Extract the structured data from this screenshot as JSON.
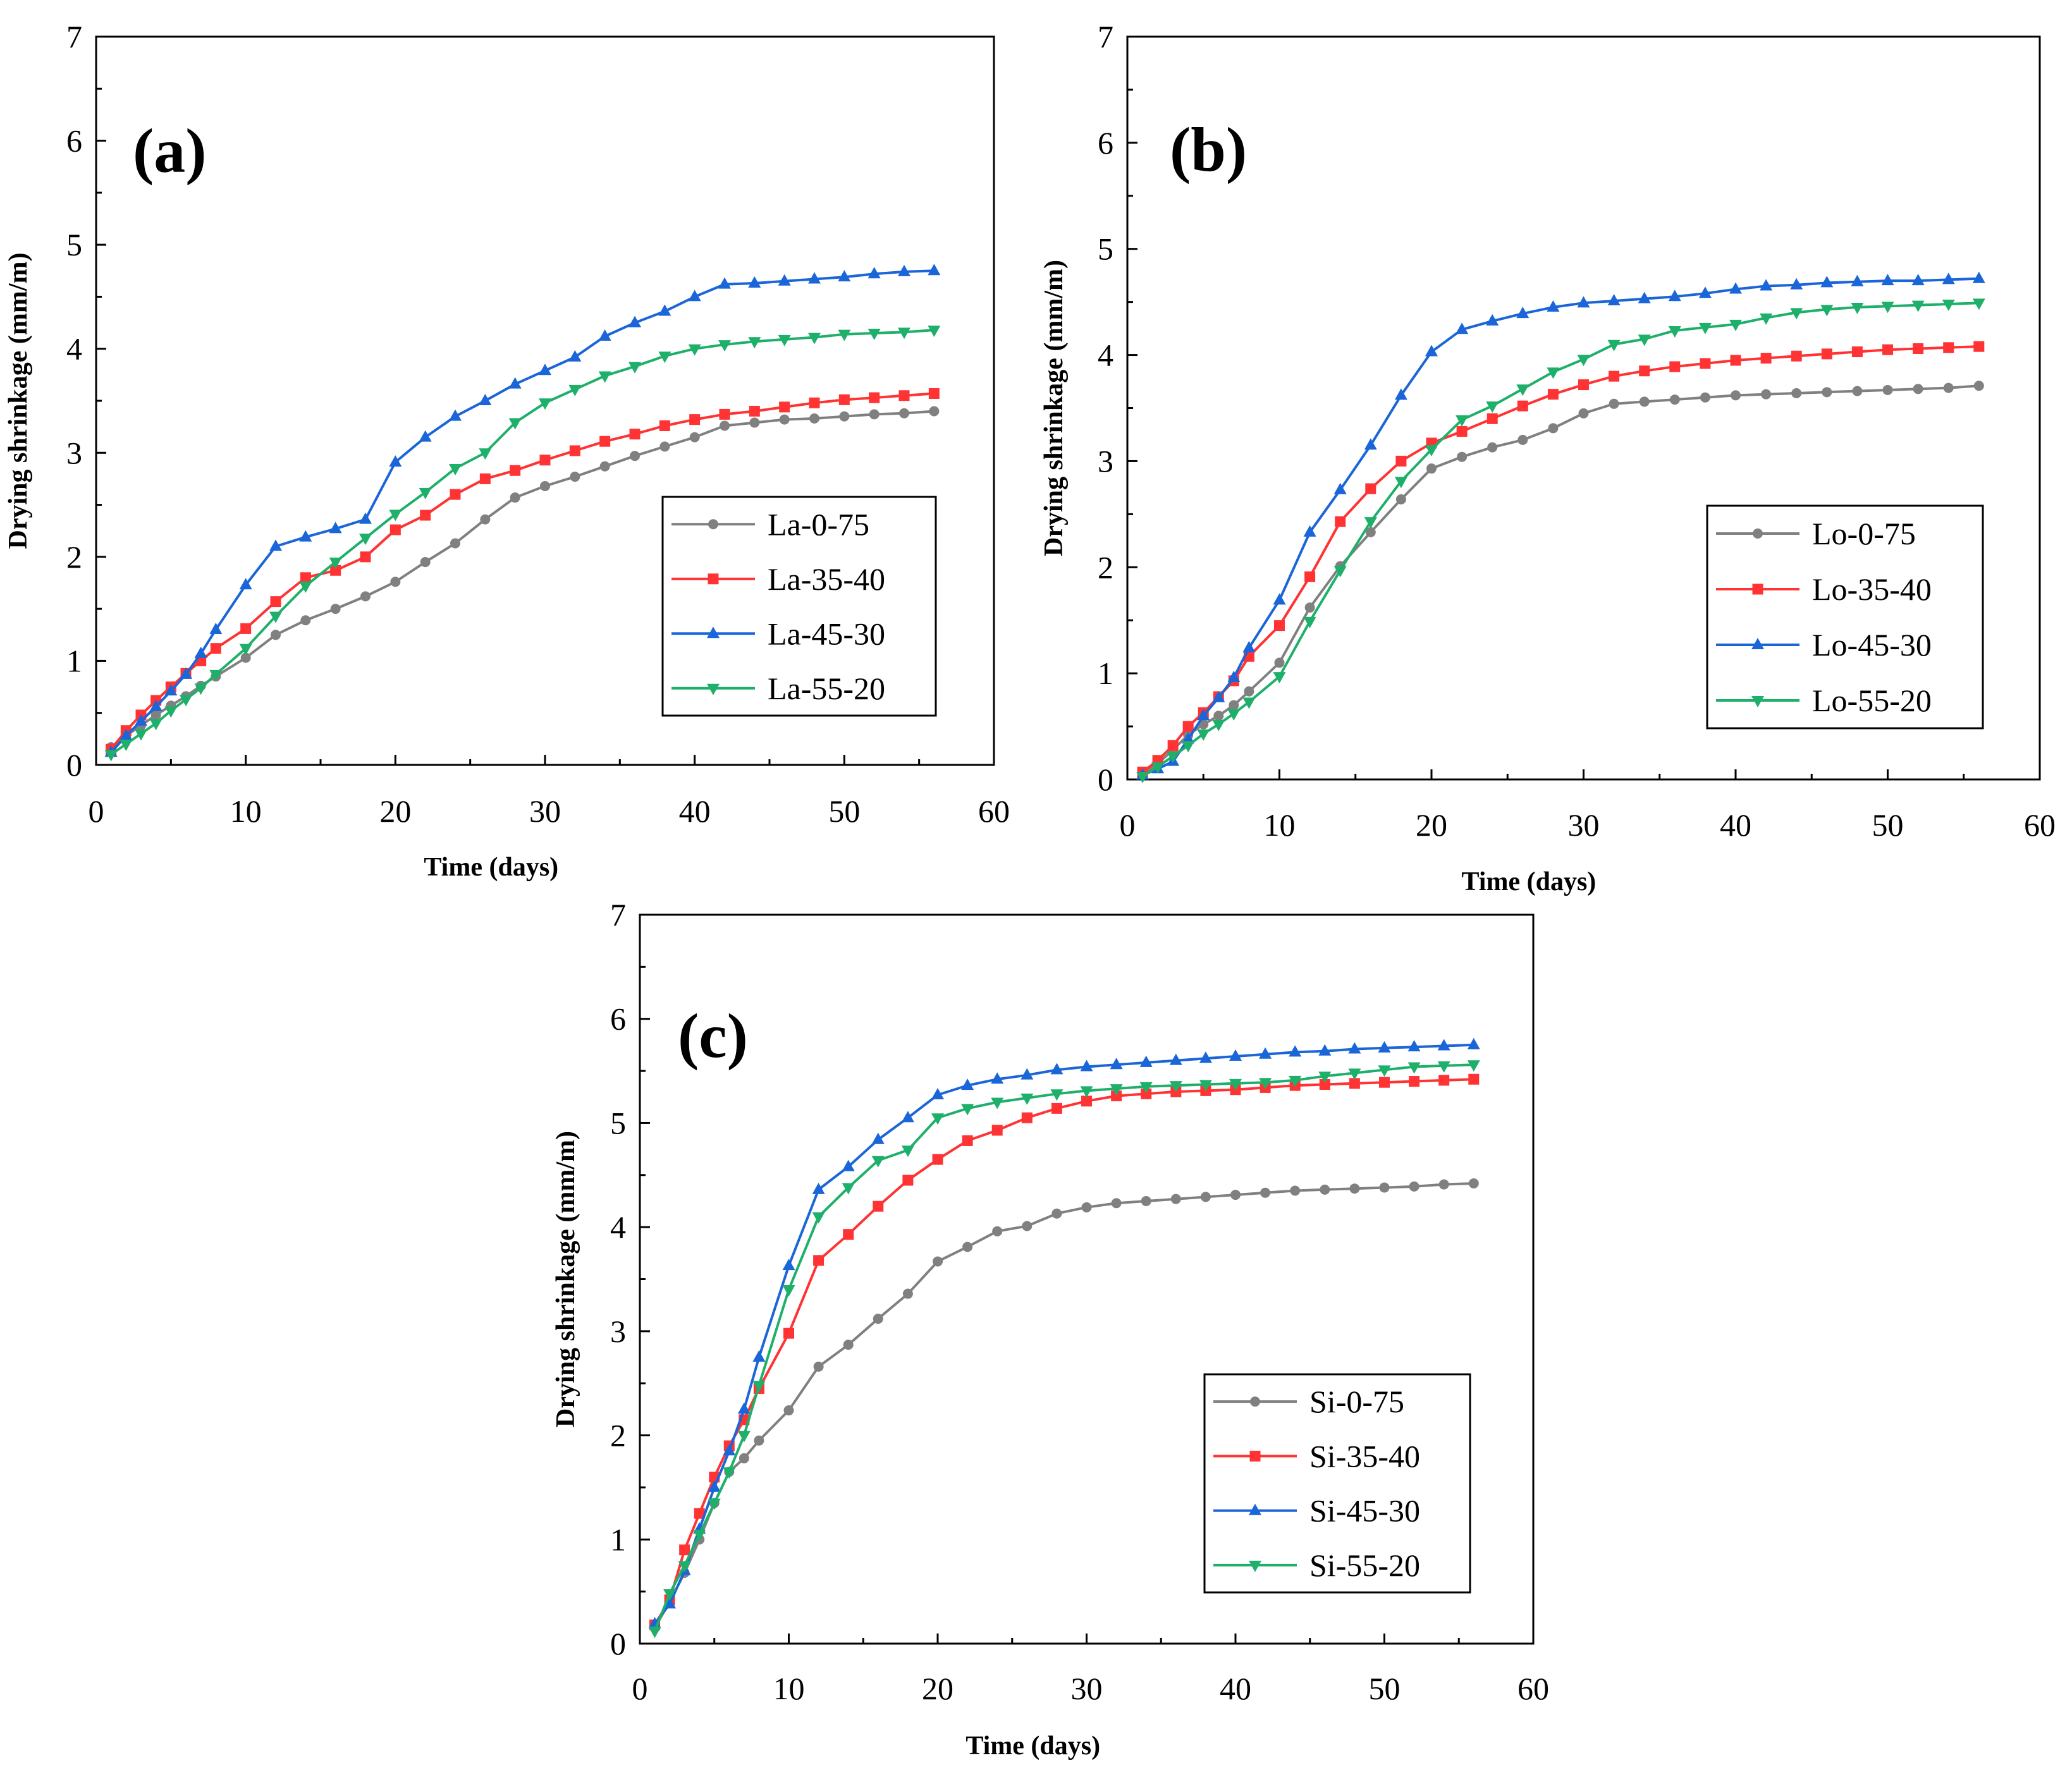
{
  "chart_data": [
    {
      "type": "line",
      "panel_label": "(a)",
      "xlabel": "Time (days)",
      "ylabel": "Drying shrinkage (mm/m)",
      "xlim": [
        0,
        60
      ],
      "ylim": [
        0,
        7
      ],
      "xticks": [
        "0",
        "10",
        "20",
        "30",
        "40",
        "50",
        "60"
      ],
      "yticks": [
        "0",
        "1",
        "2",
        "3",
        "4",
        "5",
        "6",
        "7"
      ],
      "legend_position": "middle-right",
      "x": [
        1,
        2,
        3,
        4,
        5,
        6,
        7,
        8,
        10,
        12,
        14,
        16,
        18,
        20,
        22,
        24,
        26,
        28,
        30,
        32,
        34,
        36,
        38,
        40,
        42,
        44,
        46,
        48,
        50,
        52,
        54,
        56
      ],
      "series": [
        {
          "name": "La-0-75",
          "color": "#808080",
          "marker": "circle",
          "values": [
            0.17,
            0.28,
            0.38,
            0.48,
            0.57,
            0.66,
            0.76,
            0.85,
            1.03,
            1.25,
            1.39,
            1.5,
            1.62,
            1.76,
            1.95,
            2.13,
            2.36,
            2.57,
            2.68,
            2.77,
            2.87,
            2.97,
            3.06,
            3.15,
            3.26,
            3.29,
            3.32,
            3.33,
            3.35,
            3.37,
            3.38,
            3.4
          ]
        },
        {
          "name": "La-35-40",
          "color": "#ff3333",
          "marker": "square",
          "values": [
            0.15,
            0.33,
            0.48,
            0.62,
            0.75,
            0.88,
            1.0,
            1.12,
            1.31,
            1.57,
            1.8,
            1.87,
            2.0,
            2.26,
            2.4,
            2.6,
            2.75,
            2.83,
            2.93,
            3.02,
            3.11,
            3.18,
            3.26,
            3.32,
            3.37,
            3.4,
            3.44,
            3.48,
            3.51,
            3.53,
            3.55,
            3.57
          ]
        },
        {
          "name": "La-45-30",
          "color": "#1a66d9",
          "marker": "triangle-up",
          "values": [
            0.12,
            0.28,
            0.42,
            0.56,
            0.71,
            0.87,
            1.07,
            1.3,
            1.73,
            2.1,
            2.19,
            2.27,
            2.36,
            2.91,
            3.15,
            3.35,
            3.5,
            3.66,
            3.79,
            3.92,
            4.12,
            4.25,
            4.36,
            4.5,
            4.62,
            4.63,
            4.65,
            4.67,
            4.69,
            4.72,
            4.74,
            4.75
          ]
        },
        {
          "name": "La-55-20",
          "color": "#1eb06a",
          "marker": "triangle-down",
          "values": [
            0.1,
            0.2,
            0.3,
            0.4,
            0.52,
            0.63,
            0.74,
            0.87,
            1.12,
            1.43,
            1.72,
            1.95,
            2.18,
            2.41,
            2.62,
            2.85,
            3.0,
            3.29,
            3.48,
            3.61,
            3.74,
            3.83,
            3.93,
            4.0,
            4.04,
            4.07,
            4.09,
            4.11,
            4.14,
            4.15,
            4.16,
            4.18
          ]
        }
      ]
    },
    {
      "type": "line",
      "panel_label": "(b)",
      "xlabel": "Time (days)",
      "ylabel": "Drying shrinkage (mm/m)",
      "xlim": [
        0,
        60
      ],
      "ylim": [
        0,
        7
      ],
      "xticks": [
        "0",
        "10",
        "20",
        "30",
        "40",
        "50",
        "60"
      ],
      "yticks": [
        "0",
        "1",
        "2",
        "3",
        "4",
        "5",
        "6",
        "7"
      ],
      "legend_position": "middle-right",
      "x": [
        1,
        2,
        3,
        4,
        5,
        6,
        7,
        8,
        10,
        12,
        14,
        16,
        18,
        20,
        22,
        24,
        26,
        28,
        30,
        32,
        34,
        36,
        38,
        40,
        42,
        44,
        46,
        48,
        50,
        52,
        54,
        56
      ],
      "series": [
        {
          "name": "Lo-0-75",
          "color": "#808080",
          "marker": "circle",
          "values": [
            0.05,
            0.15,
            0.28,
            0.42,
            0.52,
            0.6,
            0.7,
            0.83,
            1.1,
            1.62,
            2.01,
            2.33,
            2.64,
            2.93,
            3.04,
            3.13,
            3.2,
            3.31,
            3.45,
            3.54,
            3.56,
            3.58,
            3.6,
            3.62,
            3.63,
            3.64,
            3.65,
            3.66,
            3.67,
            3.68,
            3.69,
            3.71
          ]
        },
        {
          "name": "Lo-35-40",
          "color": "#ff3333",
          "marker": "square",
          "values": [
            0.07,
            0.18,
            0.32,
            0.5,
            0.63,
            0.78,
            0.93,
            1.16,
            1.45,
            1.91,
            2.43,
            2.74,
            3.0,
            3.17,
            3.28,
            3.4,
            3.52,
            3.63,
            3.72,
            3.8,
            3.85,
            3.89,
            3.92,
            3.95,
            3.97,
            3.99,
            4.01,
            4.03,
            4.05,
            4.06,
            4.07,
            4.08
          ]
        },
        {
          "name": "Lo-45-30",
          "color": "#1a66d9",
          "marker": "triangle-up",
          "values": [
            0.04,
            0.1,
            0.17,
            0.38,
            0.6,
            0.77,
            0.96,
            1.24,
            1.69,
            2.33,
            2.73,
            3.15,
            3.62,
            4.03,
            4.24,
            4.32,
            4.39,
            4.45,
            4.49,
            4.51,
            4.53,
            4.55,
            4.58,
            4.62,
            4.65,
            4.66,
            4.68,
            4.69,
            4.7,
            4.7,
            4.71,
            4.72
          ]
        },
        {
          "name": "Lo-55-20",
          "color": "#1eb06a",
          "marker": "triangle-down",
          "values": [
            0.03,
            0.12,
            0.22,
            0.32,
            0.43,
            0.52,
            0.62,
            0.73,
            0.97,
            1.49,
            1.97,
            2.43,
            2.81,
            3.11,
            3.39,
            3.52,
            3.68,
            3.84,
            3.96,
            4.1,
            4.15,
            4.23,
            4.26,
            4.29,
            4.35,
            4.4,
            4.43,
            4.45,
            4.46,
            4.47,
            4.48,
            4.49
          ]
        }
      ]
    },
    {
      "type": "line",
      "panel_label": "(c)",
      "xlabel": "Time (days)",
      "ylabel": "Drying shrinkage (mm/m)",
      "xlim": [
        0,
        60
      ],
      "ylim": [
        0,
        7
      ],
      "xticks": [
        "0",
        "10",
        "20",
        "30",
        "40",
        "50",
        "60"
      ],
      "yticks": [
        "0",
        "1",
        "2",
        "3",
        "4",
        "5",
        "6",
        "7"
      ],
      "legend_position": "bottom-right",
      "x": [
        1,
        2,
        3,
        4,
        5,
        6,
        7,
        8,
        10,
        12,
        14,
        16,
        18,
        20,
        22,
        24,
        26,
        28,
        30,
        32,
        34,
        36,
        38,
        40,
        42,
        44,
        46,
        48,
        50,
        52,
        54,
        56
      ],
      "series": [
        {
          "name": "Si-0-75",
          "color": "#808080",
          "marker": "circle",
          "values": [
            0.15,
            0.4,
            0.68,
            1.0,
            1.35,
            1.65,
            1.78,
            1.95,
            2.24,
            2.66,
            2.87,
            3.12,
            3.36,
            3.67,
            3.81,
            3.96,
            4.01,
            4.13,
            4.19,
            4.23,
            4.25,
            4.27,
            4.29,
            4.31,
            4.33,
            4.35,
            4.36,
            4.37,
            4.38,
            4.39,
            4.41,
            4.42
          ]
        },
        {
          "name": "Si-35-40",
          "color": "#ff3333",
          "marker": "square",
          "values": [
            0.18,
            0.42,
            0.9,
            1.25,
            1.6,
            1.9,
            2.15,
            2.45,
            2.98,
            3.68,
            3.93,
            4.2,
            4.45,
            4.65,
            4.83,
            4.93,
            5.05,
            5.14,
            5.21,
            5.26,
            5.28,
            5.3,
            5.31,
            5.32,
            5.34,
            5.36,
            5.37,
            5.38,
            5.39,
            5.4,
            5.41,
            5.42
          ]
        },
        {
          "name": "Si-45-30",
          "color": "#1a66d9",
          "marker": "triangle-up",
          "values": [
            0.19,
            0.38,
            0.7,
            1.1,
            1.5,
            1.85,
            2.25,
            2.75,
            3.63,
            4.36,
            4.58,
            4.84,
            5.05,
            5.27,
            5.36,
            5.42,
            5.46,
            5.51,
            5.54,
            5.56,
            5.58,
            5.6,
            5.62,
            5.64,
            5.66,
            5.68,
            5.69,
            5.71,
            5.72,
            5.73,
            5.74,
            5.75
          ]
        },
        {
          "name": "Si-55-20",
          "color": "#1eb06a",
          "marker": "triangle-down",
          "values": [
            0.12,
            0.48,
            0.75,
            1.05,
            1.35,
            1.65,
            2.0,
            2.48,
            3.4,
            4.1,
            4.38,
            4.64,
            4.74,
            5.05,
            5.14,
            5.2,
            5.24,
            5.28,
            5.31,
            5.33,
            5.35,
            5.36,
            5.37,
            5.38,
            5.39,
            5.41,
            5.45,
            5.48,
            5.51,
            5.54,
            5.55,
            5.56
          ]
        }
      ]
    }
  ]
}
